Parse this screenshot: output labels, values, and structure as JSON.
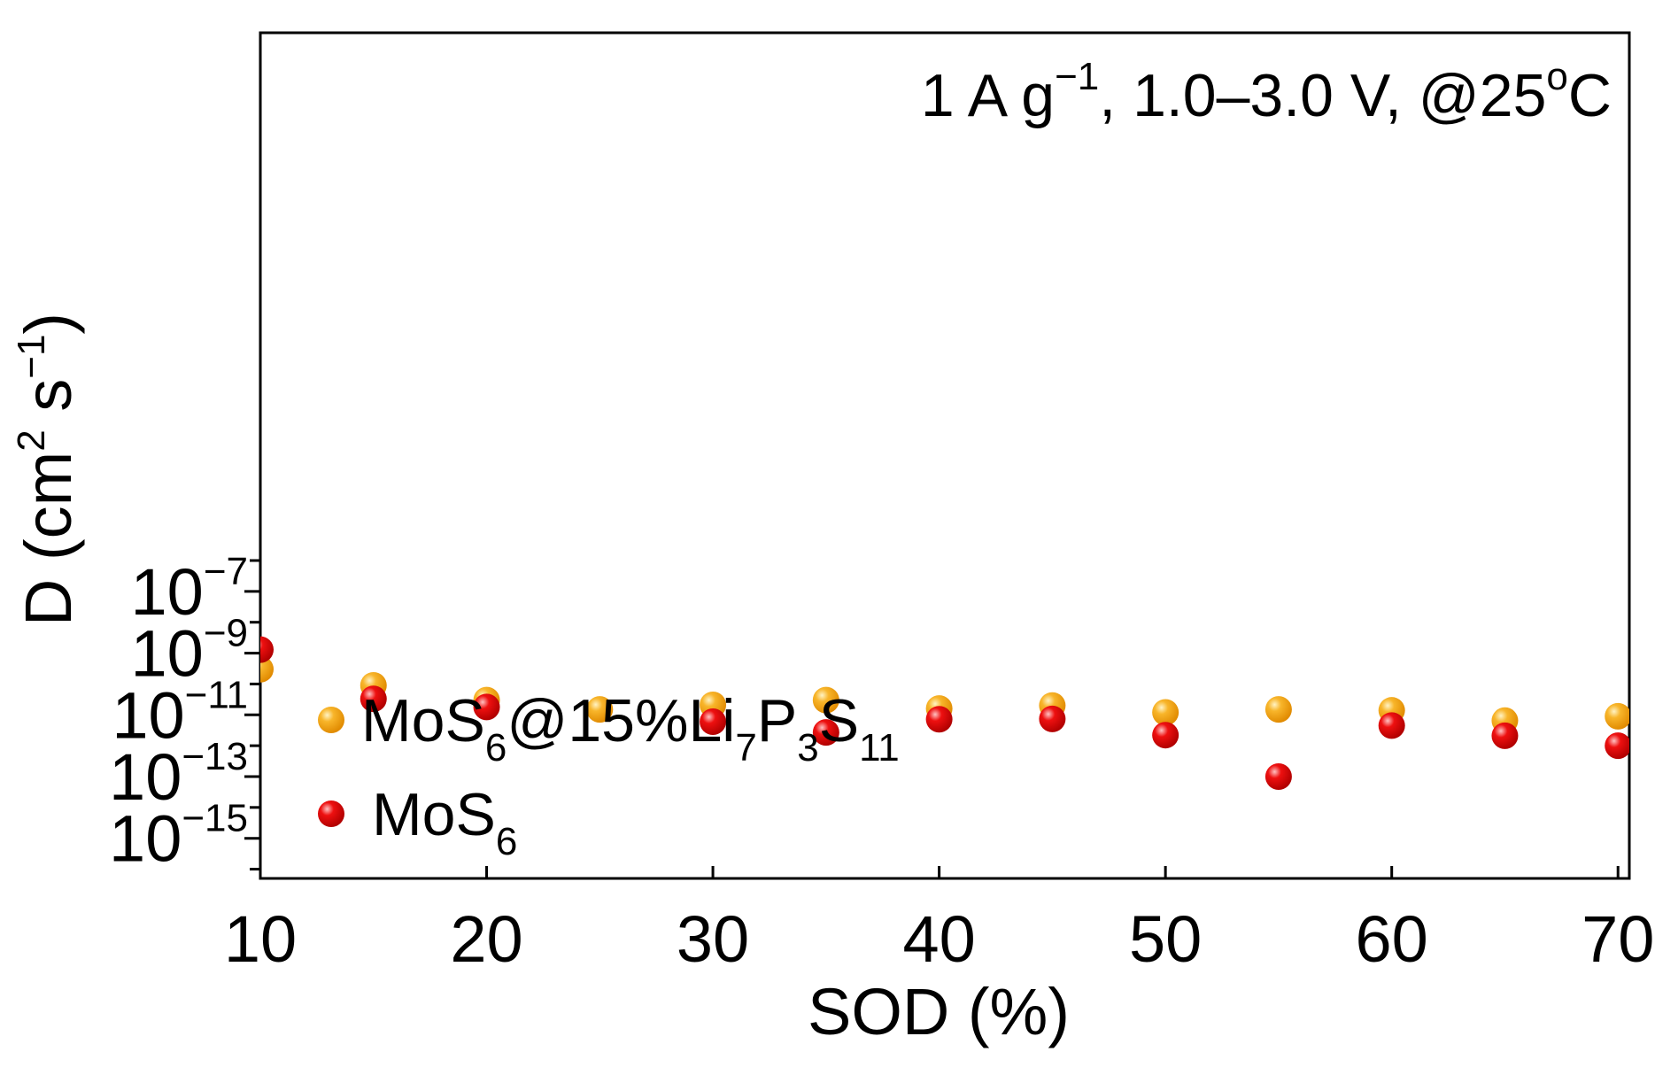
{
  "chart_data": {
    "type": "scatter",
    "x_scale": "linear",
    "y_scale": "log",
    "xlim": [
      10,
      70.5
    ],
    "ylim_exponent": [
      -16.3,
      11.1
    ],
    "x_ticks": [
      10,
      20,
      30,
      40,
      50,
      60,
      70
    ],
    "x_tick_labels": [
      "10",
      "20",
      "30",
      "40",
      "50",
      "60",
      "70"
    ],
    "y_major_exponents": [
      -7,
      -9,
      -11,
      -13,
      -15
    ],
    "y_minor_exponents": [
      -6,
      -8,
      -10,
      -12,
      -14,
      -16
    ],
    "y_tick_base": "10",
    "y_tick_exponent_labels": [
      "−7",
      "−9",
      "−11",
      "−13",
      "−15"
    ],
    "xlabel": "SOD (%)",
    "ylabel": {
      "prefix": "D (cm",
      "sup1": "2",
      "middle": " s",
      "sup2": "−1",
      "suffix": ")"
    },
    "annotation": {
      "part1": "1 A g",
      "sup1": "−1",
      "part2": ", 1.0–3.0 V, @25",
      "sup2": "o",
      "part3": "C"
    },
    "series": [
      {
        "name": "MoS6@15%Li7P3S11",
        "color": "#f5a20f",
        "highlight": "#ffe08a",
        "legend": {
          "t1": "MoS",
          "s1": "6",
          "t2": "@15%Li",
          "s2": "7",
          "t3": "P",
          "s3": "3",
          "t4": "S",
          "s4": "11"
        },
        "x": [
          10,
          15,
          20,
          25,
          30,
          35,
          40,
          45,
          50,
          55,
          60,
          65,
          70
        ],
        "y": [
          3e-10,
          9e-11,
          3e-11,
          1.5e-11,
          2.1e-11,
          3e-11,
          1.6e-11,
          2e-11,
          1.2e-11,
          1.5e-11,
          1.4e-11,
          6.5e-12,
          9e-12
        ]
      },
      {
        "name": "MoS6",
        "color": "#e00000",
        "highlight": "#ff8a8a",
        "legend": {
          "t1": "MoS",
          "s1": "6"
        },
        "x": [
          10,
          15,
          20,
          30,
          35,
          40,
          45,
          50,
          55,
          60,
          65,
          70
        ],
        "y": [
          1.3e-09,
          3.3e-11,
          1.8e-11,
          6e-12,
          2.7e-12,
          7.2e-12,
          7.4e-12,
          2.2e-12,
          1e-13,
          4.5e-12,
          2.1e-12,
          1e-12
        ]
      }
    ]
  }
}
